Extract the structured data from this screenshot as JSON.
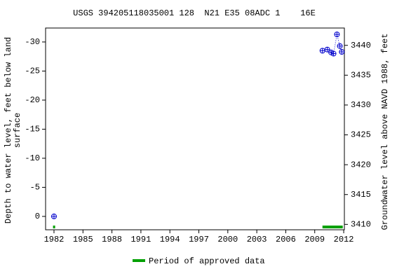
{
  "chart_data": {
    "type": "scatter",
    "title": "USGS 394205118035001 128  N21 E35 08ADC 1    16E",
    "y_label": [
      "Depth to water level, feet below land",
      "surface"
    ],
    "y2_label": "Groundwater level above NAVD 1988, feet",
    "xlim": [
      1981.13,
      2012.07
    ],
    "xticks": [
      1982,
      1985,
      1988,
      1991,
      1994,
      1997,
      2000,
      2003,
      2006,
      2009,
      2012
    ],
    "ylim": [
      2.3,
      -32.4
    ],
    "yticks": [
      0,
      -5,
      -10,
      -15,
      -20,
      -25,
      -30
    ],
    "y2lim": [
      3409.1,
      3442.9
    ],
    "y2ticks": [
      3410,
      3415,
      3420,
      3425,
      3430,
      3435,
      3440
    ],
    "series": [
      {
        "name": "Depth to water level",
        "color": "#0000cc",
        "x": [
          1982.0,
          null,
          2009.8,
          2010.3,
          2010.7,
          2010.95,
          2011.3,
          2011.6,
          2011.8
        ],
        "values": [
          0,
          null,
          -28.5,
          -28.7,
          -28.2,
          -28.0,
          -31.3,
          -29.3,
          -28.3
        ]
      }
    ],
    "approved_periods": {
      "name": "Period of approved data",
      "color": "#00a000",
      "ranges": [
        [
          1981.9,
          1982.1
        ],
        [
          2009.8,
          2011.9
        ]
      ]
    }
  }
}
